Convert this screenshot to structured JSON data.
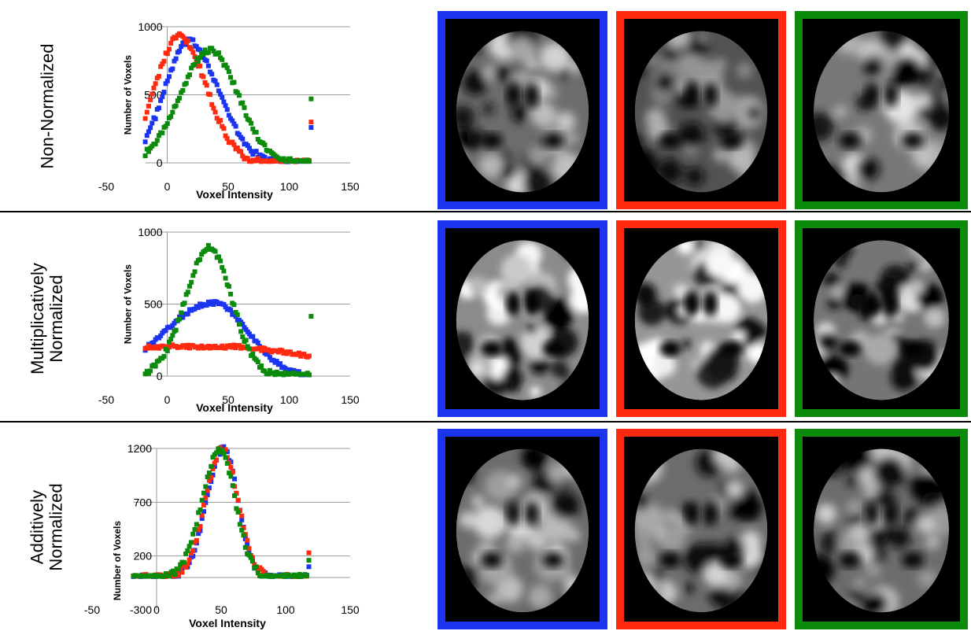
{
  "colors": {
    "blue": "#1a34f0",
    "red": "#ff2a10",
    "green": "#0c8a0c",
    "grid": "#9a9a9a",
    "divider": "#000000"
  },
  "rows": [
    {
      "label_lines": [
        "Non-Normalized"
      ]
    },
    {
      "label_lines": [
        "Multiplicatively",
        "Normalized"
      ]
    },
    {
      "label_lines": [
        "Additively",
        "Normalized"
      ]
    }
  ],
  "chart_data": [
    {
      "type": "scatter",
      "xlabel": "Voxel Intensity",
      "ylabel": "Number of Voxels",
      "xlim": [
        -50,
        150
      ],
      "ylim": [
        0,
        1000
      ],
      "xticks": [
        -50,
        0,
        50,
        100,
        150
      ],
      "yticks": [
        0,
        500,
        1000
      ],
      "grid": "horizontal",
      "series": [
        {
          "color": "blue",
          "shape": "gaussian",
          "center": 18,
          "amplitude": 890,
          "sigma_left": 20,
          "sigma_right": 24,
          "x_range": [
            -18,
            118
          ],
          "outlier": [
            118,
            260
          ]
        },
        {
          "color": "red",
          "shape": "gaussian",
          "center": 10,
          "amplitude": 930,
          "sigma_left": 20,
          "sigma_right": 22,
          "x_range": [
            -18,
            118
          ],
          "outlier": [
            118,
            300
          ]
        },
        {
          "color": "green",
          "shape": "gaussian",
          "center": 35,
          "amplitude": 830,
          "sigma_left": 24,
          "sigma_right": 23,
          "x_range": [
            -18,
            118
          ],
          "outlier": [
            118,
            470
          ]
        }
      ]
    },
    {
      "type": "scatter",
      "xlabel": "Voxel Intensity",
      "ylabel": "Number of Voxels",
      "xlim": [
        -50,
        150
      ],
      "ylim": [
        0,
        1000
      ],
      "xticks": [
        -50,
        0,
        50,
        100,
        150
      ],
      "yticks": [
        0,
        500,
        1000
      ],
      "grid": "horizontal",
      "series": [
        {
          "color": "blue",
          "shape": "gaussian",
          "center": 38,
          "amplitude": 510,
          "sigma_left": 40,
          "sigma_right": 28,
          "x_range": [
            -18,
            118
          ],
          "outlier": null
        },
        {
          "color": "red",
          "shape": "flat",
          "level": 205,
          "end_level": 140,
          "x_range": [
            -18,
            118
          ],
          "outlier": null
        },
        {
          "color": "green",
          "shape": "gaussian",
          "center": 35,
          "amplitude": 890,
          "sigma_left": 20,
          "sigma_right": 18,
          "x_range": [
            -18,
            118
          ],
          "outlier": [
            118,
            415
          ]
        }
      ]
    },
    {
      "type": "scatter",
      "xlabel": "Voxel Intensity",
      "ylabel": "Number of Voxels",
      "xlim": [
        -50,
        150
      ],
      "ylim": [
        -300,
        1200
      ],
      "xticks": [
        -50,
        0,
        50,
        100,
        150
      ],
      "yticks": [
        -300,
        200,
        700,
        1200
      ],
      "grid": "horizontal",
      "series": [
        {
          "color": "blue",
          "shape": "gaussian",
          "center": 52,
          "amplitude": 1200,
          "sigma_left": 13,
          "sigma_right": 11,
          "x_range": [
            -18,
            118
          ],
          "outlier": [
            118,
            100
          ]
        },
        {
          "color": "red",
          "shape": "gaussian",
          "center": 51,
          "amplitude": 1190,
          "sigma_left": 13,
          "sigma_right": 12,
          "x_range": [
            -18,
            118
          ],
          "outlier": [
            118,
            230
          ]
        },
        {
          "color": "green",
          "shape": "gaussian",
          "center": 49,
          "amplitude": 1180,
          "sigma_left": 14,
          "sigma_right": 12,
          "x_range": [
            -18,
            118
          ],
          "outlier": [
            118,
            160
          ]
        }
      ]
    }
  ],
  "tiles": [
    [
      {
        "border": "blue",
        "brightness": 0.62
      },
      {
        "border": "red",
        "brightness": 0.38
      },
      {
        "border": "green",
        "brightness": 0.72
      }
    ],
    [
      {
        "border": "blue",
        "brightness": 0.9
      },
      {
        "border": "red",
        "brightness": 1.0
      },
      {
        "border": "green",
        "brightness": 0.7
      }
    ],
    [
      {
        "border": "blue",
        "brightness": 0.62
      },
      {
        "border": "red",
        "brightness": 0.62
      },
      {
        "border": "green",
        "brightness": 0.62
      }
    ]
  ]
}
